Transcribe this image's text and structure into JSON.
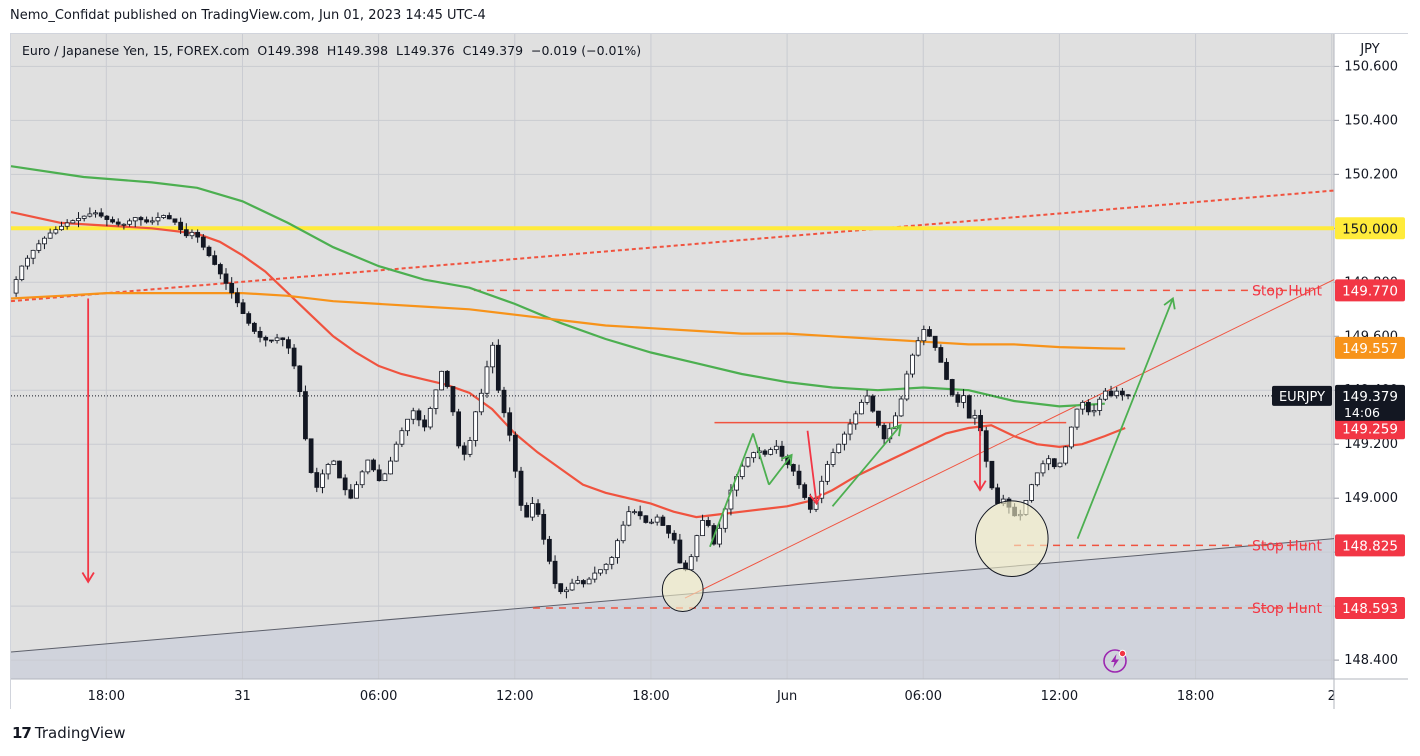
{
  "header": {
    "publisher": "Nemo_Confidat published on TradingView.com, Jun 01, 2023 14:45 UTC-4"
  },
  "legend": {
    "symbol": "Euro / Japanese Yen, 15, FOREX.com",
    "o_label": "O",
    "o": "149.398",
    "h_label": "H",
    "h": "149.398",
    "l_label": "L",
    "l": "149.376",
    "c_label": "C",
    "c": "149.379",
    "change": "−0.019 (−0.01%)"
  },
  "footer": {
    "brand": "TradingView",
    "logo_glyph": "17"
  },
  "icons": {
    "bolt": "lightning-icon"
  },
  "colors": {
    "bg": "#e0e0e0",
    "up_candle": "#ffffff",
    "down_candle": "#131722",
    "ma_green": "#4caf50",
    "ma_red": "#f0533f",
    "ma_orange": "#f7931a",
    "level_yellow": "#ffeb3b",
    "annot_red": "#f23645",
    "annot_green": "#4caf50",
    "trend_gray": "#5d606b"
  },
  "chart_data": {
    "type": "candlestick",
    "currency": "JPY",
    "ylim": [
      148.33,
      150.72
    ],
    "yticks": [
      150.6,
      150.4,
      150.2,
      150.0,
      149.8,
      149.6,
      149.4,
      149.2,
      149.0,
      148.8,
      148.6,
      148.4
    ],
    "ytick_labels": [
      "150.600",
      "150.400",
      "150.200",
      "150.000",
      "149.800",
      "149.600",
      "149.400",
      "149.200",
      "149.000",
      "148.800",
      "148.600",
      "148.400"
    ],
    "x_ticks": [
      {
        "label": "18:00",
        "t": 18
      },
      {
        "label": "31",
        "t": 24
      },
      {
        "label": "06:00",
        "t": 30
      },
      {
        "label": "12:00",
        "t": 36
      },
      {
        "label": "18:00",
        "t": 42
      },
      {
        "label": "Jun",
        "t": 48
      },
      {
        "label": "06:00",
        "t": 54
      },
      {
        "label": "12:00",
        "t": 60
      },
      {
        "label": "18:00",
        "t": 66
      },
      {
        "label": "2",
        "t": 72
      }
    ],
    "x_range_hours": [
      13.8,
      72.1
    ],
    "grid": true,
    "last_price": 149.379,
    "last_price_tag": {
      "symbol": "EURJPY",
      "value": "149.379",
      "countdown": "14:06"
    },
    "price_tags": [
      {
        "value": "150.000",
        "price": 150.0,
        "style": "yellow"
      },
      {
        "value": "149.770",
        "price": 149.77,
        "style": "red"
      },
      {
        "value": "149.557",
        "price": 149.557,
        "style": "orange"
      },
      {
        "value": "149.259",
        "price": 149.259,
        "style": "red"
      },
      {
        "value": "148.825",
        "price": 148.825,
        "style": "red"
      },
      {
        "value": "148.593",
        "price": 148.593,
        "style": "red"
      }
    ],
    "annotations": [
      {
        "text": "Stop Hunt",
        "price": 149.77
      },
      {
        "text": "Stop Hunt",
        "price": 148.825
      },
      {
        "text": "Stop Hunt",
        "price": 148.593
      }
    ],
    "horizontal_levels": [
      {
        "price": 150.0,
        "from": 13.8,
        "to": 72.1,
        "color": "yellow",
        "style": "solid"
      },
      {
        "price": 149.77,
        "from": 34.2,
        "to": 71.0,
        "color": "red",
        "style": "dashed"
      },
      {
        "price": 148.825,
        "from": 58.0,
        "to": 71.0,
        "color": "red",
        "style": "dashed"
      },
      {
        "price": 148.593,
        "from": 36.8,
        "to": 71.0,
        "color": "red",
        "style": "dashed"
      },
      {
        "price": 149.28,
        "from": 44.8,
        "to": 60.3,
        "color": "red",
        "style": "solid"
      }
    ],
    "trend_lines": [
      {
        "x1": 13.8,
        "y1": 149.73,
        "x2": 72.1,
        "y2": 150.14,
        "color": "red",
        "style": "dotted"
      },
      {
        "x1": 13.8,
        "y1": 148.43,
        "x2": 72.1,
        "y2": 148.85,
        "color": "gray",
        "style": "solid"
      },
      {
        "x1": 43.5,
        "y1": 148.63,
        "x2": 72.1,
        "y2": 149.81,
        "color": "red",
        "style": "solid"
      }
    ],
    "arrows": [
      {
        "x1": 17.2,
        "y1": 149.74,
        "x2": 17.2,
        "y2": 148.69,
        "color": "red"
      },
      {
        "x1": 48.9,
        "y1": 149.25,
        "x2": 49.3,
        "y2": 148.98,
        "color": "red"
      },
      {
        "x1": 56.5,
        "y1": 149.26,
        "x2": 56.5,
        "y2": 149.03,
        "color": "red"
      },
      {
        "x1": 44.6,
        "y1": 148.82,
        "x2": 46.5,
        "y2": 149.24,
        "color": "green"
      },
      {
        "x1": 46.5,
        "y1": 149.24,
        "x2": 47.2,
        "y2": 149.05,
        "color": "green"
      },
      {
        "x1": 47.2,
        "y1": 149.05,
        "x2": 48.2,
        "y2": 149.16,
        "color": "green"
      },
      {
        "x1": 50.0,
        "y1": 148.97,
        "x2": 53.0,
        "y2": 149.27,
        "color": "green"
      },
      {
        "x1": 60.8,
        "y1": 148.85,
        "x2": 65.0,
        "y2": 149.74,
        "color": "green"
      }
    ],
    "circles": [
      {
        "x": 43.4,
        "y": 148.66,
        "rx_hours": 0.9,
        "ry_price": 0.08
      },
      {
        "x": 57.9,
        "y": 148.85,
        "rx_hours": 1.6,
        "ry_price": 0.14
      }
    ],
    "moving_averages": [
      {
        "color": "green",
        "points": [
          [
            13.8,
            150.23
          ],
          [
            17,
            150.19
          ],
          [
            20,
            150.17
          ],
          [
            22,
            150.15
          ],
          [
            24,
            150.1
          ],
          [
            26,
            150.02
          ],
          [
            28,
            149.93
          ],
          [
            30,
            149.86
          ],
          [
            32,
            149.81
          ],
          [
            34,
            149.78
          ],
          [
            36,
            149.72
          ],
          [
            38,
            149.65
          ],
          [
            40,
            149.59
          ],
          [
            42,
            149.54
          ],
          [
            44,
            149.5
          ],
          [
            46,
            149.46
          ],
          [
            48,
            149.43
          ],
          [
            50,
            149.41
          ],
          [
            52,
            149.4
          ],
          [
            54,
            149.41
          ],
          [
            56,
            149.4
          ],
          [
            58,
            149.36
          ],
          [
            60,
            149.34
          ],
          [
            62,
            149.35
          ]
        ]
      },
      {
        "color": "red",
        "points": [
          [
            13.8,
            150.06
          ],
          [
            16,
            150.02
          ],
          [
            18,
            150.01
          ],
          [
            20,
            150.0
          ],
          [
            22,
            149.98
          ],
          [
            23,
            149.95
          ],
          [
            24,
            149.9
          ],
          [
            25,
            149.84
          ],
          [
            26,
            149.76
          ],
          [
            27,
            149.68
          ],
          [
            28,
            149.6
          ],
          [
            29,
            149.54
          ],
          [
            30,
            149.49
          ],
          [
            31,
            149.46
          ],
          [
            32,
            149.44
          ],
          [
            33,
            149.42
          ],
          [
            34,
            149.39
          ],
          [
            35,
            149.33
          ],
          [
            36,
            149.24
          ],
          [
            37,
            149.17
          ],
          [
            38,
            149.11
          ],
          [
            39,
            149.05
          ],
          [
            40,
            149.02
          ],
          [
            41,
            149.0
          ],
          [
            42,
            148.98
          ],
          [
            43,
            148.95
          ],
          [
            44,
            148.93
          ],
          [
            45,
            148.94
          ],
          [
            46,
            148.95
          ],
          [
            47,
            148.96
          ],
          [
            48,
            148.97
          ],
          [
            49,
            148.99
          ],
          [
            50,
            149.03
          ],
          [
            51,
            149.08
          ],
          [
            52,
            149.12
          ],
          [
            53,
            149.16
          ],
          [
            54,
            149.2
          ],
          [
            55,
            149.24
          ],
          [
            56,
            149.26
          ],
          [
            57,
            149.27
          ],
          [
            58,
            149.23
          ],
          [
            59,
            149.2
          ],
          [
            60,
            149.19
          ],
          [
            61,
            149.2
          ],
          [
            62,
            149.23
          ],
          [
            62.9,
            149.26
          ]
        ]
      },
      {
        "color": "orange",
        "points": [
          [
            13.8,
            149.74
          ],
          [
            16,
            149.75
          ],
          [
            18,
            149.76
          ],
          [
            20,
            149.76
          ],
          [
            22,
            149.76
          ],
          [
            24,
            149.76
          ],
          [
            26,
            149.75
          ],
          [
            28,
            149.73
          ],
          [
            30,
            149.72
          ],
          [
            32,
            149.71
          ],
          [
            34,
            149.7
          ],
          [
            36,
            149.68
          ],
          [
            38,
            149.66
          ],
          [
            40,
            149.64
          ],
          [
            42,
            149.63
          ],
          [
            44,
            149.62
          ],
          [
            46,
            149.61
          ],
          [
            48,
            149.61
          ],
          [
            50,
            149.6
          ],
          [
            52,
            149.59
          ],
          [
            54,
            149.58
          ],
          [
            56,
            149.57
          ],
          [
            58,
            149.57
          ],
          [
            60,
            149.56
          ],
          [
            62,
            149.555
          ],
          [
            62.9,
            149.554
          ]
        ]
      }
    ],
    "price_path": [
      [
        13.9,
        149.76
      ],
      [
        14.4,
        149.86
      ],
      [
        15,
        149.93
      ],
      [
        15.6,
        149.98
      ],
      [
        16.4,
        150.02
      ],
      [
        17,
        150.04
      ],
      [
        17.6,
        150.06
      ],
      [
        18.2,
        150.03
      ],
      [
        18.8,
        150.01
      ],
      [
        19.4,
        150.04
      ],
      [
        20,
        150.02
      ],
      [
        20.6,
        150.05
      ],
      [
        21.2,
        150.02
      ],
      [
        21.6,
        149.97
      ],
      [
        22,
        149.99
      ],
      [
        22.4,
        149.93
      ],
      [
        22.8,
        149.88
      ],
      [
        23.3,
        149.81
      ],
      [
        23.8,
        149.74
      ],
      [
        24.3,
        149.66
      ],
      [
        24.8,
        149.6
      ],
      [
        25.3,
        149.58
      ],
      [
        25.8,
        149.6
      ],
      [
        26.2,
        149.55
      ],
      [
        26.6,
        149.43
      ],
      [
        26.9,
        149.22
      ],
      [
        27.3,
        149.02
      ],
      [
        27.7,
        149.1
      ],
      [
        28.1,
        149.15
      ],
      [
        28.5,
        149.05
      ],
      [
        28.9,
        149.0
      ],
      [
        29.3,
        149.08
      ],
      [
        29.7,
        149.15
      ],
      [
        30.1,
        149.06
      ],
      [
        30.5,
        149.1
      ],
      [
        30.9,
        149.2
      ],
      [
        31.3,
        149.28
      ],
      [
        31.7,
        149.33
      ],
      [
        32.1,
        149.25
      ],
      [
        32.5,
        149.36
      ],
      [
        32.9,
        149.47
      ],
      [
        33.3,
        149.38
      ],
      [
        33.6,
        149.2
      ],
      [
        34.0,
        149.15
      ],
      [
        34.4,
        149.32
      ],
      [
        34.8,
        149.43
      ],
      [
        35.1,
        149.6
      ],
      [
        35.4,
        149.4
      ],
      [
        35.7,
        149.3
      ],
      [
        36.0,
        149.2
      ],
      [
        36.3,
        149.0
      ],
      [
        36.6,
        148.92
      ],
      [
        37.0,
        149.0
      ],
      [
        37.3,
        148.88
      ],
      [
        37.7,
        148.75
      ],
      [
        38.0,
        148.65
      ],
      [
        38.4,
        148.66
      ],
      [
        38.8,
        148.7
      ],
      [
        39.2,
        148.68
      ],
      [
        39.6,
        148.72
      ],
      [
        40.0,
        148.74
      ],
      [
        40.4,
        148.78
      ],
      [
        40.8,
        148.88
      ],
      [
        41.2,
        148.96
      ],
      [
        41.6,
        148.94
      ],
      [
        42.0,
        148.9
      ],
      [
        42.4,
        148.93
      ],
      [
        42.8,
        148.88
      ],
      [
        43.2,
        148.84
      ],
      [
        43.5,
        148.72
      ],
      [
        43.8,
        148.75
      ],
      [
        44.1,
        148.85
      ],
      [
        44.5,
        148.94
      ],
      [
        44.9,
        148.83
      ],
      [
        45.2,
        148.9
      ],
      [
        45.6,
        149.02
      ],
      [
        46.0,
        149.1
      ],
      [
        46.4,
        149.15
      ],
      [
        46.8,
        149.18
      ],
      [
        47.2,
        149.16
      ],
      [
        47.6,
        149.2
      ],
      [
        48.0,
        149.14
      ],
      [
        48.4,
        149.1
      ],
      [
        48.8,
        149.02
      ],
      [
        49.2,
        148.95
      ],
      [
        49.6,
        149.05
      ],
      [
        50.0,
        149.15
      ],
      [
        50.4,
        149.2
      ],
      [
        50.8,
        149.26
      ],
      [
        51.2,
        149.32
      ],
      [
        51.6,
        149.39
      ],
      [
        52.0,
        149.3
      ],
      [
        52.4,
        149.22
      ],
      [
        52.8,
        149.28
      ],
      [
        53.2,
        149.38
      ],
      [
        53.5,
        149.5
      ],
      [
        53.8,
        149.56
      ],
      [
        54.1,
        149.63
      ],
      [
        54.4,
        149.6
      ],
      [
        54.7,
        149.55
      ],
      [
        55.0,
        149.48
      ],
      [
        55.3,
        149.4
      ],
      [
        55.6,
        149.35
      ],
      [
        55.9,
        149.38
      ],
      [
        56.2,
        149.28
      ],
      [
        56.5,
        149.32
      ],
      [
        56.8,
        149.18
      ],
      [
        57.1,
        149.05
      ],
      [
        57.4,
        148.98
      ],
      [
        57.7,
        149.0
      ],
      [
        58.0,
        148.95
      ],
      [
        58.3,
        148.92
      ],
      [
        58.6,
        148.98
      ],
      [
        58.9,
        149.05
      ],
      [
        59.3,
        149.12
      ],
      [
        59.7,
        149.15
      ],
      [
        60.0,
        149.1
      ],
      [
        60.3,
        149.16
      ],
      [
        60.6,
        149.25
      ],
      [
        60.9,
        149.33
      ],
      [
        61.2,
        149.36
      ],
      [
        61.5,
        149.3
      ],
      [
        61.8,
        149.35
      ],
      [
        62.1,
        149.4
      ],
      [
        62.4,
        149.38
      ],
      [
        62.7,
        149.4
      ],
      [
        62.95,
        149.379
      ]
    ],
    "bolt_position": [
      63.3,
      148.38
    ]
  }
}
